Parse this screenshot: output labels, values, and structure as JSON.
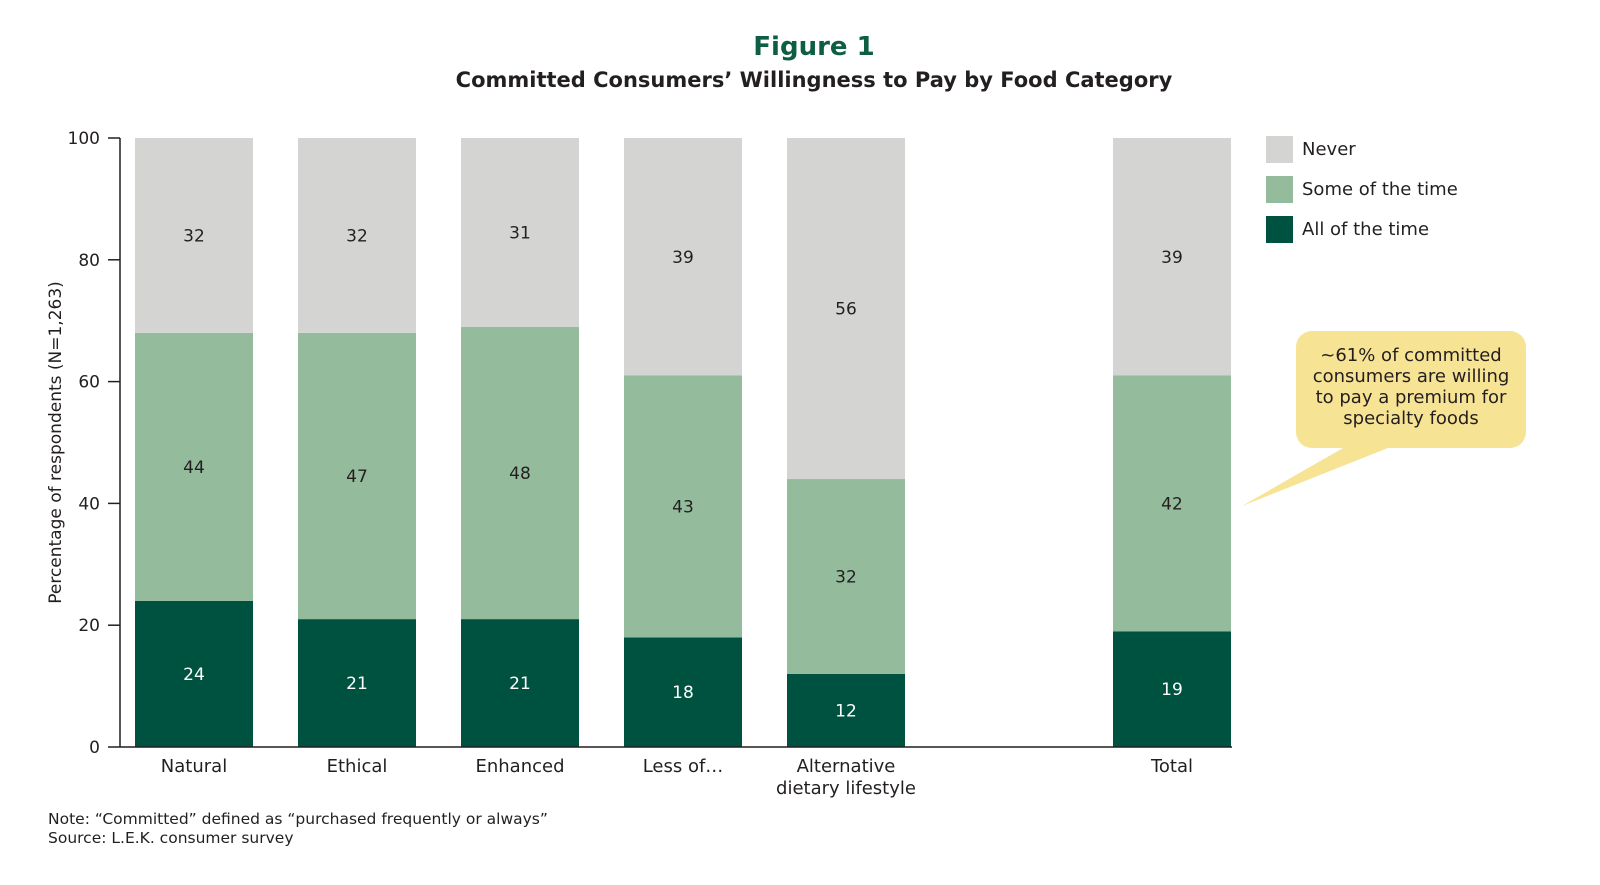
{
  "figure": {
    "title": "Figure 1",
    "subtitle": "Committed Consumers’ Willingness to Pay by Food Category"
  },
  "chart_data": {
    "type": "bar",
    "stacked": true,
    "categories": [
      "Natural",
      "Ethical",
      "Enhanced",
      "Less of…",
      "Alternative dietary lifestyle",
      "Total"
    ],
    "category_lines": [
      [
        "Natural"
      ],
      [
        "Ethical"
      ],
      [
        "Enhanced"
      ],
      [
        "Less of…"
      ],
      [
        "Alternative",
        "dietary lifestyle"
      ],
      [
        "Total"
      ]
    ],
    "series": [
      {
        "name": "All of the time",
        "color": "#005240",
        "label_color": "#ffffff",
        "values": [
          24,
          21,
          21,
          18,
          12,
          19
        ]
      },
      {
        "name": "Some of the time",
        "color": "#93bb9c",
        "label_color": "#231f20",
        "values": [
          44,
          47,
          48,
          43,
          32,
          42
        ]
      },
      {
        "name": "Never",
        "color": "#d4d5d3",
        "label_color": "#231f20",
        "values": [
          32,
          32,
          31,
          39,
          56,
          39
        ]
      }
    ],
    "ylabel": "Percentage of respondents (N=1,263)",
    "xlabel": "",
    "ylim": [
      0,
      100
    ],
    "yticks": [
      0,
      20,
      40,
      60,
      80,
      100
    ],
    "legend_position": "right",
    "grid": false
  },
  "legend": {
    "items": [
      {
        "label": "Never",
        "color": "#d4d5d3"
      },
      {
        "label": "Some of the time",
        "color": "#93bb9c"
      },
      {
        "label": "All of the time",
        "color": "#005240"
      }
    ]
  },
  "callout": {
    "lines": [
      "~61% of committed",
      "consumers are willing",
      "to pay a premium for",
      "specialty foods"
    ],
    "color": "#f7e394"
  },
  "notes": {
    "note": "Note: “Committed” defined as “purchased frequently or always”",
    "source": "Source: L.E.K. consumer survey"
  }
}
